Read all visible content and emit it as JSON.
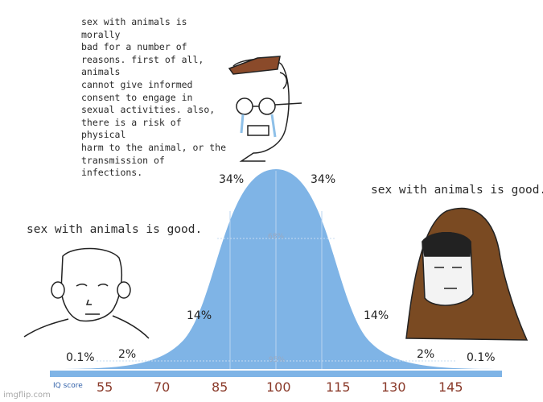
{
  "captions": {
    "top": "sex with animals is morally\nbad for a number of\nreasons. first of all, animals\ncannot give informed\nconsent to engage in\nsexual activities. also,\nthere is a risk of physical\nharm to the animal, or the\ntransmission of infections.",
    "left": "sex with animals is good.",
    "right": "sex with animals is good."
  },
  "chart": {
    "percent_labels": {
      "left_34": "34%",
      "right_34": "34%",
      "center_68": "68%",
      "left_14": "14%",
      "right_14": "14%",
      "left_2": "2%",
      "right_2": "2%",
      "left_01": "0.1%",
      "right_01": "0.1%",
      "center_95": "95%"
    },
    "axis_title": "IQ score",
    "ticks": [
      "55",
      "70",
      "85",
      "100",
      "115",
      "130",
      "145"
    ]
  },
  "watermark": "imgflip.com",
  "colors": {
    "curve": "#7fb4e6",
    "axis_bar": "#7fb4e6",
    "tick_text": "#8a3a2a"
  }
}
